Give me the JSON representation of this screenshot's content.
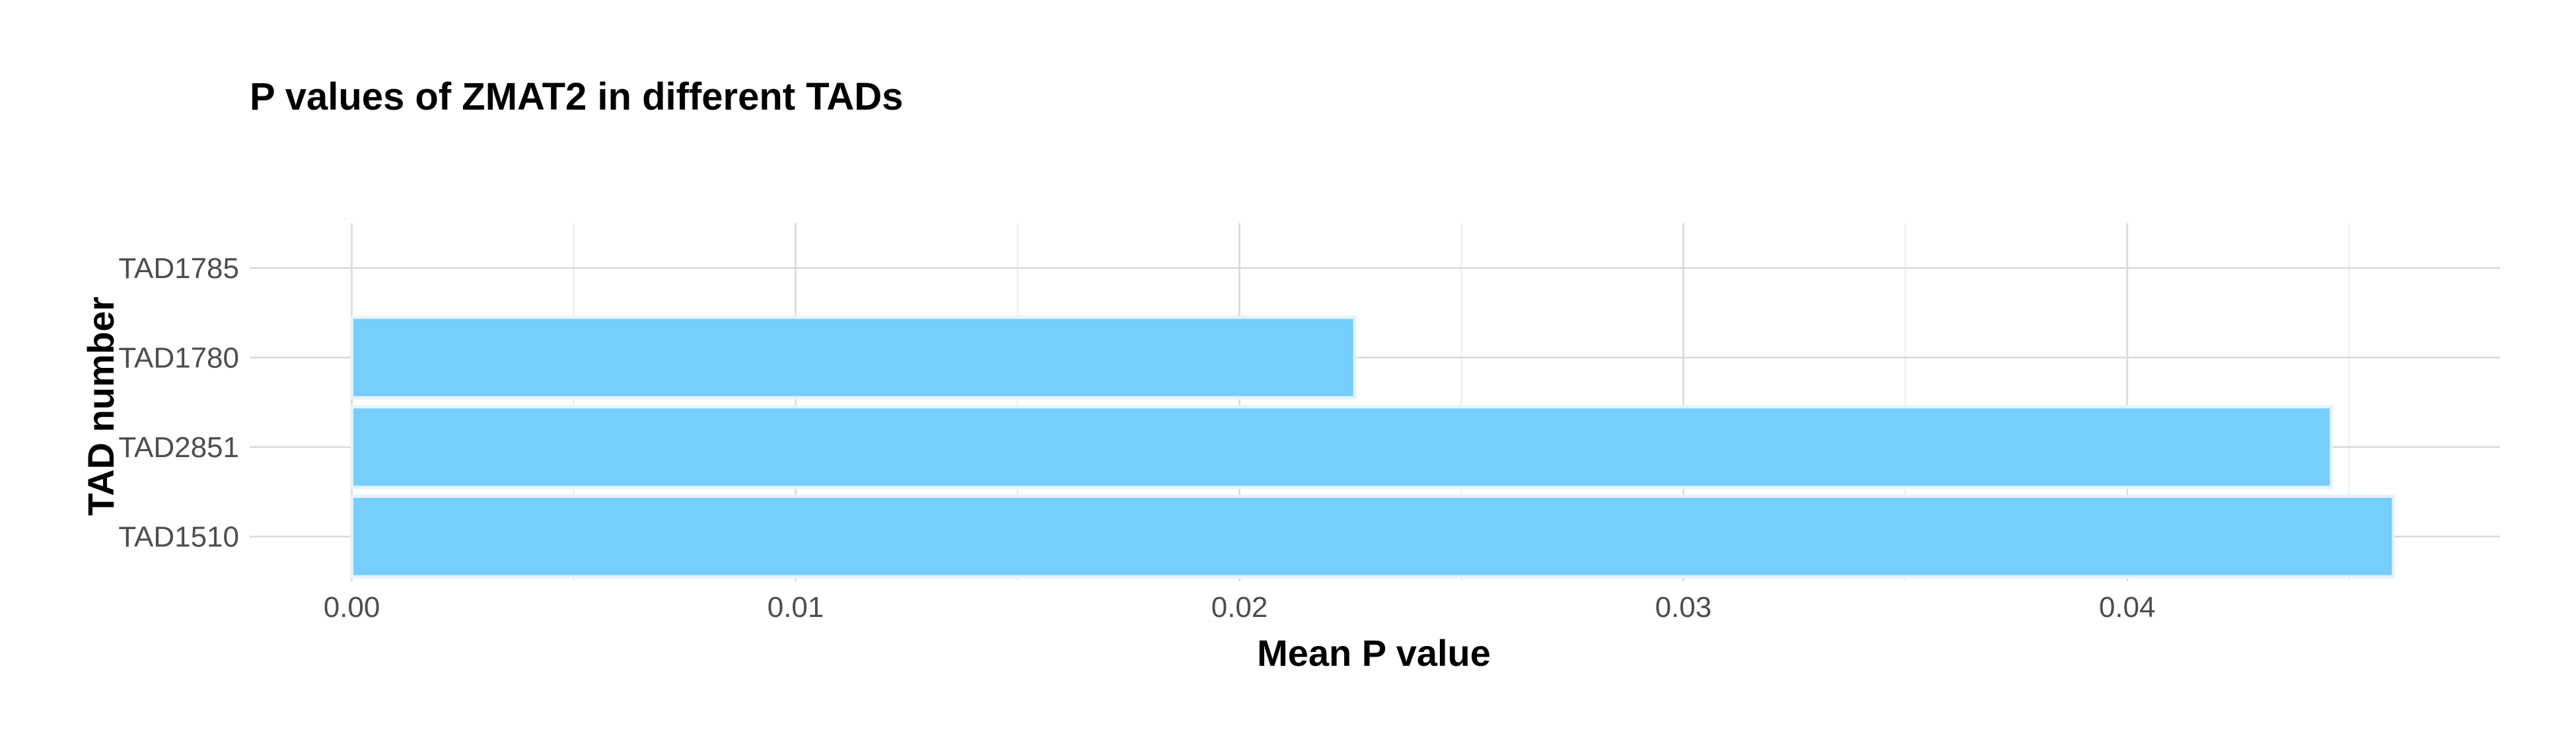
{
  "chart_data": {
    "type": "bar",
    "orientation": "horizontal",
    "title": "P values of ZMAT2 in different TADs",
    "xlabel": "Mean P value",
    "ylabel": "TAD number",
    "categories": [
      "TAD1785",
      "TAD1780",
      "TAD2851",
      "TAD1510"
    ],
    "values": [
      null,
      0.0226,
      0.0446,
      0.046
    ],
    "xlim": [
      -0.0023,
      0.0484
    ],
    "xticks": [
      0,
      0.01,
      0.02,
      0.03,
      0.04
    ],
    "xtick_labels": [
      "0.00",
      "0.01",
      "0.02",
      "0.03",
      "0.04"
    ],
    "grid": true,
    "legend": "none",
    "colors": {
      "bar": "#75CEFB",
      "bar_outline": "#E6F2FB",
      "grid": "#D9D9D9"
    }
  }
}
